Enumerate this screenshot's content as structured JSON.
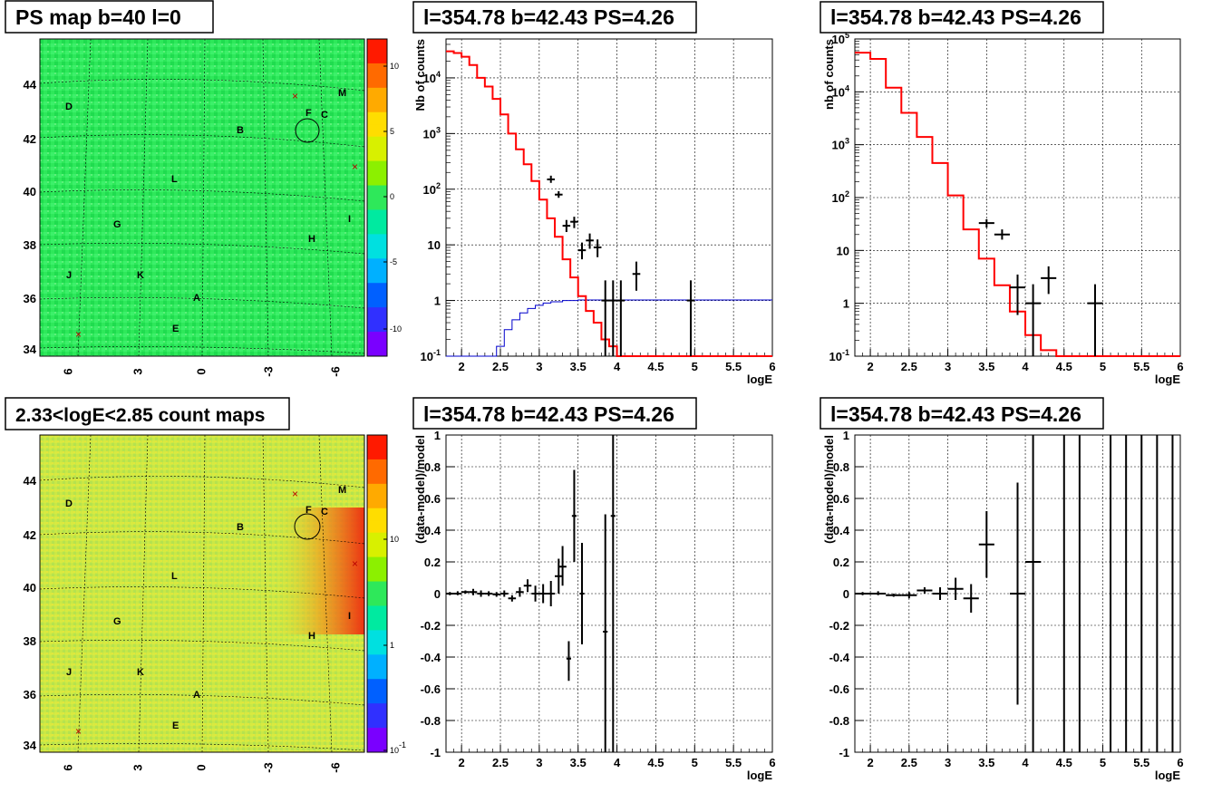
{
  "colors": {
    "data": "#000000",
    "model": "#ff0000",
    "efficiency": "#0000cc",
    "map1_base": "#22ee55",
    "map2_base": "#c8e84a"
  },
  "maps": [
    {
      "title": "PS map b=40 l=0",
      "x_ticks": [
        "6",
        "3",
        "0",
        "-3",
        "-6"
      ],
      "y_ticks": [
        "44",
        "42",
        "40",
        "38",
        "36",
        "34"
      ],
      "colorbar_ticks": [
        "10",
        "5",
        "0",
        "-5",
        "-10"
      ],
      "colorbar_scale": "linear",
      "labels": [
        "D",
        "B",
        "F",
        "C",
        "M",
        "L",
        "G",
        "I",
        "H",
        "J",
        "K",
        "A",
        "E"
      ]
    },
    {
      "title": "2.33<logE<2.85 count maps",
      "x_ticks": [
        "6",
        "3",
        "0",
        "-3",
        "-6"
      ],
      "y_ticks": [
        "44",
        "42",
        "40",
        "38",
        "36",
        "34"
      ],
      "colorbar_ticks": [
        "10",
        "1",
        "10-1"
      ],
      "colorbar_scale": "log",
      "labels": [
        "D",
        "B",
        "F",
        "C",
        "M",
        "L",
        "G",
        "I",
        "H",
        "J",
        "K",
        "A",
        "E"
      ]
    }
  ],
  "chart_data": [
    {
      "type": "histogram-log",
      "title": "l=354.78 b=42.43 PS=4.26",
      "xlabel": "logE",
      "ylabel": "Nb of counts",
      "xlim": [
        1.8,
        6
      ],
      "ylim_log": [
        0.1,
        50000
      ],
      "x_ticks": [
        "2",
        "2.5",
        "3",
        "3.5",
        "4",
        "4.5",
        "5",
        "5.5",
        "6"
      ],
      "y_ticks": [
        "10-1",
        "1",
        "10",
        "102",
        "103",
        "104"
      ],
      "y_tick_exps": [
        -1,
        0,
        1,
        2,
        3,
        4
      ],
      "grid": true,
      "model_edges": [
        1.8,
        1.9,
        2.0,
        2.1,
        2.2,
        2.3,
        2.4,
        2.5,
        2.6,
        2.7,
        2.8,
        2.9,
        3.0,
        3.1,
        3.2,
        3.3,
        3.4,
        3.5,
        3.6,
        3.7,
        3.8,
        3.9,
        4.0,
        4.1,
        4.2,
        4.3,
        6.0
      ],
      "model_values": [
        30000,
        28000,
        24000,
        17000,
        10000,
        7000,
        4200,
        2200,
        1000,
        520,
        280,
        140,
        65,
        30,
        14,
        5.5,
        2.6,
        1.2,
        0.65,
        0.4,
        0.2,
        0.15,
        0.1,
        0.1,
        0.1,
        0.1
      ],
      "efficiency_edges": [
        1.8,
        2.1,
        2.35,
        2.45,
        2.55,
        2.65,
        2.75,
        2.85,
        2.95,
        3.05,
        3.15,
        3.3,
        3.5,
        6.0
      ],
      "efficiency_values": [
        0.1,
        0.1,
        0.1,
        0.15,
        0.3,
        0.45,
        0.6,
        0.72,
        0.82,
        0.9,
        0.95,
        1.0,
        1.02,
        1.02
      ],
      "data_points": [
        {
          "x": 3.15,
          "y": 150,
          "xerr": 0.05,
          "lo": 130,
          "hi": 175
        },
        {
          "x": 3.25,
          "y": 80,
          "xerr": 0.05,
          "lo": 70,
          "hi": 92
        },
        {
          "x": 3.35,
          "y": 22,
          "xerr": 0.05,
          "lo": 17,
          "hi": 28
        },
        {
          "x": 3.45,
          "y": 26,
          "xerr": 0.05,
          "lo": 20,
          "hi": 32
        },
        {
          "x": 3.55,
          "y": 8,
          "xerr": 0.05,
          "lo": 5.5,
          "hi": 11
        },
        {
          "x": 3.65,
          "y": 12,
          "xerr": 0.05,
          "lo": 8.5,
          "hi": 16
        },
        {
          "x": 3.75,
          "y": 9,
          "xerr": 0.05,
          "lo": 6,
          "hi": 12.5
        },
        {
          "x": 3.85,
          "y": 1,
          "xerr": 0.05,
          "lo": 0.1,
          "hi": 2.3
        },
        {
          "x": 3.95,
          "y": 1,
          "xerr": 0.05,
          "lo": 0.1,
          "hi": 2.3
        },
        {
          "x": 4.05,
          "y": 1,
          "xerr": 0.05,
          "lo": 0.1,
          "hi": 2.3
        },
        {
          "x": 4.25,
          "y": 3,
          "xerr": 0.05,
          "lo": 1.5,
          "hi": 5
        },
        {
          "x": 4.95,
          "y": 1,
          "xerr": 0.05,
          "lo": 0.1,
          "hi": 2.3
        }
      ]
    },
    {
      "type": "histogram-log",
      "title": "l=354.78 b=42.43 PS=4.26",
      "xlabel": "logE",
      "ylabel": "nb of counts",
      "xlim": [
        1.8,
        6
      ],
      "ylim_log": [
        0.1,
        100000
      ],
      "x_ticks": [
        "2",
        "2.5",
        "3",
        "3.5",
        "4",
        "4.5",
        "5",
        "5.5",
        "6"
      ],
      "y_ticks": [
        "10-1",
        "1",
        "10",
        "102",
        "103",
        "104",
        "105"
      ],
      "y_tick_exps": [
        -1,
        0,
        1,
        2,
        3,
        4,
        5
      ],
      "grid": true,
      "model_edges": [
        1.8,
        2.0,
        2.2,
        2.4,
        2.6,
        2.8,
        3.0,
        3.2,
        3.4,
        3.6,
        3.8,
        4.0,
        4.2,
        4.4,
        4.6,
        6.0
      ],
      "model_values": [
        55000,
        42000,
        12000,
        4000,
        1400,
        450,
        110,
        25,
        7,
        2.2,
        0.7,
        0.25,
        0.13,
        0.1,
        0.1
      ],
      "data_points": [
        {
          "x": 3.5,
          "y": 33,
          "xerr": 0.1,
          "lo": 27,
          "hi": 39
        },
        {
          "x": 3.7,
          "y": 20,
          "xerr": 0.1,
          "lo": 16,
          "hi": 25
        },
        {
          "x": 3.9,
          "y": 2,
          "xerr": 0.1,
          "lo": 0.6,
          "hi": 3.5
        },
        {
          "x": 4.1,
          "y": 1,
          "xerr": 0.1,
          "lo": 0.1,
          "hi": 2.3
        },
        {
          "x": 4.3,
          "y": 3,
          "xerr": 0.1,
          "lo": 1.5,
          "hi": 5
        },
        {
          "x": 4.9,
          "y": 1,
          "xerr": 0.1,
          "lo": 0.1,
          "hi": 2.3
        }
      ]
    },
    {
      "type": "scatter-errorbar",
      "title": "l=354.78 b=42.43 PS=4.26",
      "xlabel": "logE",
      "ylabel": "(data-model)/model",
      "xlim": [
        1.8,
        6
      ],
      "ylim": [
        -1,
        1
      ],
      "x_ticks": [
        "2",
        "2.5",
        "3",
        "3.5",
        "4",
        "4.5",
        "5",
        "5.5",
        "6"
      ],
      "y_ticks": [
        "1",
        "0.8",
        "0.6",
        "0.4",
        "0.2",
        "0",
        "-0.2",
        "-0.4",
        "-0.6",
        "-0.8",
        "-1"
      ],
      "grid": true,
      "data_points": [
        {
          "x": 1.85,
          "y": 0.0,
          "xerr": 0.05,
          "lo": -0.01,
          "hi": 0.01
        },
        {
          "x": 1.95,
          "y": 0.0,
          "xerr": 0.05,
          "lo": -0.01,
          "hi": 0.015
        },
        {
          "x": 2.05,
          "y": 0.01,
          "xerr": 0.05,
          "lo": 0.0,
          "hi": 0.02
        },
        {
          "x": 2.15,
          "y": 0.01,
          "xerr": 0.05,
          "lo": -0.01,
          "hi": 0.03
        },
        {
          "x": 2.25,
          "y": 0.0,
          "xerr": 0.05,
          "lo": -0.02,
          "hi": 0.02
        },
        {
          "x": 2.35,
          "y": 0.0,
          "xerr": 0.05,
          "lo": -0.015,
          "hi": 0.015
        },
        {
          "x": 2.45,
          "y": -0.005,
          "xerr": 0.05,
          "lo": -0.02,
          "hi": 0.01
        },
        {
          "x": 2.55,
          "y": 0.0,
          "xerr": 0.05,
          "lo": -0.02,
          "hi": 0.02
        },
        {
          "x": 2.65,
          "y": -0.03,
          "xerr": 0.05,
          "lo": -0.05,
          "hi": -0.01
        },
        {
          "x": 2.75,
          "y": 0.01,
          "xerr": 0.05,
          "lo": -0.02,
          "hi": 0.04
        },
        {
          "x": 2.85,
          "y": 0.05,
          "xerr": 0.05,
          "lo": 0.01,
          "hi": 0.09
        },
        {
          "x": 2.95,
          "y": 0.0,
          "xerr": 0.05,
          "lo": -0.05,
          "hi": 0.05
        },
        {
          "x": 3.05,
          "y": 0.0,
          "xerr": 0.05,
          "lo": -0.06,
          "hi": 0.06
        },
        {
          "x": 3.15,
          "y": 0.0,
          "xerr": 0.05,
          "lo": -0.08,
          "hi": 0.08
        },
        {
          "x": 3.25,
          "y": 0.11,
          "xerr": 0.05,
          "lo": 0.0,
          "hi": 0.22
        },
        {
          "x": 3.3,
          "y": 0.17,
          "xerr": 0.05,
          "lo": 0.05,
          "hi": 0.3
        },
        {
          "x": 3.38,
          "y": -0.41,
          "xerr": 0.03,
          "lo": -0.55,
          "hi": -0.3
        },
        {
          "x": 3.45,
          "y": 0.49,
          "xerr": 0.03,
          "lo": 0.2,
          "hi": 0.78
        },
        {
          "x": 3.55,
          "y": 0.0,
          "xerr": 0.03,
          "lo": -0.32,
          "hi": 0.32
        },
        {
          "x": 3.85,
          "y": -0.24,
          "xerr": 0.03,
          "lo": -1.0,
          "hi": 0.5
        },
        {
          "x": 3.95,
          "y": 0.49,
          "xerr": 0.03,
          "lo": -1.0,
          "hi": 1.0
        }
      ]
    },
    {
      "type": "scatter-errorbar",
      "title": "l=354.78 b=42.43 PS=4.26",
      "xlabel": "logE",
      "ylabel": "(data-model)/model",
      "xlim": [
        1.8,
        6
      ],
      "ylim": [
        -1,
        1
      ],
      "x_ticks": [
        "2",
        "2.5",
        "3",
        "3.5",
        "4",
        "4.5",
        "5",
        "5.5",
        "6"
      ],
      "y_ticks": [
        "1",
        "0.8",
        "0.6",
        "0.4",
        "0.2",
        "0",
        "-0.2",
        "-0.4",
        "-0.6",
        "-0.8",
        "-1"
      ],
      "grid": true,
      "data_points": [
        {
          "x": 1.9,
          "y": 0.0,
          "xerr": 0.1,
          "lo": -0.01,
          "hi": 0.01
        },
        {
          "x": 2.1,
          "y": 0.0,
          "xerr": 0.1,
          "lo": -0.01,
          "hi": 0.015
        },
        {
          "x": 2.3,
          "y": -0.01,
          "xerr": 0.1,
          "lo": -0.02,
          "hi": 0.0
        },
        {
          "x": 2.5,
          "y": -0.01,
          "xerr": 0.1,
          "lo": -0.03,
          "hi": 0.01
        },
        {
          "x": 2.7,
          "y": 0.02,
          "xerr": 0.1,
          "lo": 0.0,
          "hi": 0.04
        },
        {
          "x": 2.9,
          "y": 0.0,
          "xerr": 0.1,
          "lo": -0.04,
          "hi": 0.04
        },
        {
          "x": 3.1,
          "y": 0.03,
          "xerr": 0.1,
          "lo": -0.04,
          "hi": 0.1
        },
        {
          "x": 3.3,
          "y": -0.03,
          "xerr": 0.1,
          "lo": -0.12,
          "hi": 0.06
        },
        {
          "x": 3.5,
          "y": 0.31,
          "xerr": 0.1,
          "lo": 0.1,
          "hi": 0.52
        },
        {
          "x": 3.9,
          "y": 0.0,
          "xerr": 0.1,
          "lo": -0.7,
          "hi": 0.7
        },
        {
          "x": 4.1,
          "y": 0.2,
          "xerr": 0.1,
          "lo": -1.0,
          "hi": 1.0
        },
        {
          "x": 4.5,
          "y": 1.0,
          "xerr": 0.0,
          "lo": -1.0,
          "hi": 1.0
        },
        {
          "x": 4.7,
          "y": 1.0,
          "xerr": 0.0,
          "lo": -1.0,
          "hi": 1.0
        },
        {
          "x": 5.1,
          "y": 1.0,
          "xerr": 0.0,
          "lo": -1.0,
          "hi": 1.0
        },
        {
          "x": 5.3,
          "y": 1.0,
          "xerr": 0.0,
          "lo": -1.0,
          "hi": 1.0
        },
        {
          "x": 5.5,
          "y": 1.0,
          "xerr": 0.0,
          "lo": -1.0,
          "hi": 1.0
        },
        {
          "x": 5.7,
          "y": 1.0,
          "xerr": 0.0,
          "lo": -1.0,
          "hi": 1.0
        },
        {
          "x": 5.9,
          "y": 1.0,
          "xerr": 0.0,
          "lo": -1.0,
          "hi": 1.0
        }
      ]
    }
  ]
}
